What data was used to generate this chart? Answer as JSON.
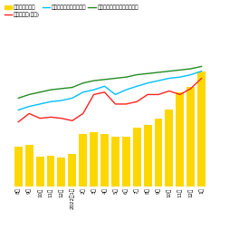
{
  "x_labels": [
    "8月",
    "9月",
    "10月",
    "11月",
    "12月",
    "2022年1月",
    "2月",
    "3月",
    "4月",
    "5月",
    "6月",
    "7月",
    "8月",
    "9月",
    "10月",
    "11月",
    "12月",
    "1月"
  ],
  "bar_values": [
    100,
    105,
    75,
    78,
    74,
    82,
    132,
    136,
    132,
    126,
    126,
    148,
    155,
    172,
    195,
    238,
    252,
    290
  ],
  "bar_color": "#FFD700",
  "red_line": [
    163,
    184,
    172,
    175,
    172,
    166,
    184,
    232,
    238,
    208,
    208,
    214,
    232,
    232,
    241,
    232,
    247,
    273
  ],
  "cyan_line": [
    193,
    202,
    208,
    214,
    217,
    223,
    238,
    244,
    253,
    232,
    244,
    253,
    261,
    267,
    273,
    276,
    282,
    291
  ],
  "green_line": [
    223,
    232,
    238,
    244,
    247,
    250,
    261,
    267,
    270,
    273,
    276,
    282,
    285,
    288,
    291,
    294,
    297,
    303
  ],
  "bar_ylim": [
    0,
    350
  ],
  "line_ylim": [
    0,
    350
  ],
  "legend_labels": [
    "販売中の物件数",
    "成約㎡単価(万円)",
    "新規売出し物件の㎡単価",
    "販売中物件の㎡単価（万円）"
  ],
  "legend_colors": [
    "#FFD700",
    "#FF2222",
    "#00BFFF",
    "#228B22"
  ],
  "background_color": "#FFFFFF",
  "grid_color": "#E0E0E0",
  "fig_bg": "#FFFFFF"
}
